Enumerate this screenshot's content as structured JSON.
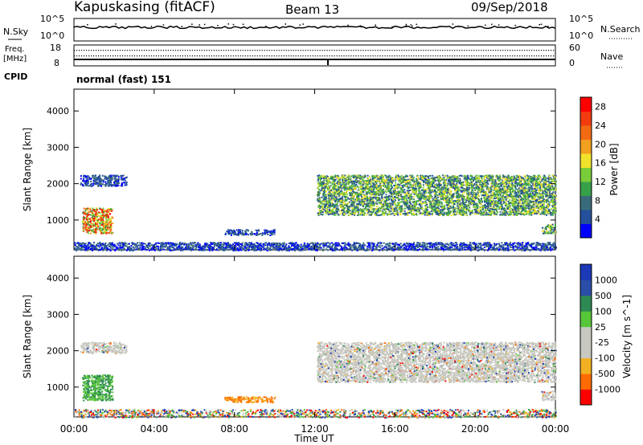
{
  "header": {
    "station": "Kapuskasing (fitACF)",
    "beam": "Beam 13",
    "date": "09/Sep/2018"
  },
  "noise_panel": {
    "left_label": "N.Sky",
    "right_label": "N.Search",
    "left_ticks": [
      "10^5",
      "10^0"
    ],
    "right_ticks": [
      "10^5",
      "10^0"
    ]
  },
  "freq_panel": {
    "left_label_line1": "Freq.",
    "left_label_line2": "[MHz]",
    "right_label": "Nave",
    "left_ticks": [
      "18",
      "8"
    ],
    "right_ticks": [
      "60",
      "0"
    ],
    "cpid_label": "CPID",
    "cpid_text": "normal (fast) 151"
  },
  "colors": {
    "power_scale": [
      "#0000ff",
      "#24509c",
      "#3a6b7a",
      "#37a14a",
      "#7acd3a",
      "#f0e22b",
      "#f2a020",
      "#f26a14",
      "#f23c10",
      "#ff0000"
    ],
    "velocity_scale": [
      "#ff0000",
      "#ff6b00",
      "#f2b122",
      "#c8c8c0",
      "#c8c8c0",
      "#57c639",
      "#2e8a53",
      "#2a4ea8",
      "#1c39b7"
    ],
    "ground_scatter": "#c8c8c0"
  },
  "chart_data": [
    {
      "type": "heatmap",
      "title": "",
      "xlabel": "",
      "ylabel": "Slant Range [km]",
      "x_ticks": [
        "00:00",
        "04:00",
        "08:00",
        "12:00",
        "16:00",
        "20:00",
        "00:00"
      ],
      "y_ticks": [
        "1000",
        "2000",
        "3000",
        "4000"
      ],
      "xlim_hours": [
        0,
        24
      ],
      "ylim_km": [
        180,
        4600
      ],
      "colorbar": {
        "label": "Power [dB]",
        "ticks": [
          "4",
          "8",
          "12",
          "16",
          "20",
          "24",
          "28"
        ],
        "range": [
          0,
          30
        ]
      },
      "regions": [
        {
          "t0": 0.3,
          "t1": 2.6,
          "r0": 1950,
          "r1": 2250,
          "level": "low"
        },
        {
          "t0": 0.4,
          "t1": 1.9,
          "r0": 650,
          "r1": 1350,
          "level": "high"
        },
        {
          "t0": 12.1,
          "t1": 24.0,
          "r0": 1150,
          "r1": 2250,
          "level": "mid"
        },
        {
          "t0": 7.5,
          "t1": 10.0,
          "r0": 600,
          "r1": 750,
          "level": "low"
        },
        {
          "t0": 23.3,
          "t1": 24.0,
          "r0": 650,
          "r1": 900,
          "level": "mid"
        },
        {
          "t0": 0.0,
          "t1": 24.0,
          "r0": 180,
          "r1": 400,
          "level": "low"
        }
      ]
    },
    {
      "type": "heatmap",
      "title": "",
      "xlabel": "Time UT",
      "ylabel": "Slant Range [km]",
      "x_ticks": [
        "00:00",
        "04:00",
        "08:00",
        "12:00",
        "16:00",
        "20:00",
        "00:00"
      ],
      "y_ticks": [
        "1000",
        "2000",
        "3000",
        "4000"
      ],
      "xlim_hours": [
        0,
        24
      ],
      "ylim_km": [
        180,
        4600
      ],
      "colorbar": {
        "label": "Velocity [m s^-1]",
        "ticks": [
          "1000",
          "500",
          "100",
          "25",
          "-25",
          "-100",
          "-500",
          "-1000"
        ],
        "range": [
          -1000,
          1000
        ]
      },
      "regions": [
        {
          "t0": 0.3,
          "t1": 2.6,
          "r0": 1950,
          "r1": 2250,
          "level": "gs"
        },
        {
          "t0": 0.4,
          "t1": 1.9,
          "r0": 650,
          "r1": 1350,
          "level": "pos"
        },
        {
          "t0": 12.1,
          "t1": 24.0,
          "r0": 1150,
          "r1": 2250,
          "level": "gs"
        },
        {
          "t0": 7.5,
          "t1": 10.0,
          "r0": 600,
          "r1": 750,
          "level": "neg"
        },
        {
          "t0": 23.3,
          "t1": 24.0,
          "r0": 650,
          "r1": 900,
          "level": "gs"
        },
        {
          "t0": 0.0,
          "t1": 24.0,
          "r0": 180,
          "r1": 400,
          "level": "mix"
        }
      ]
    }
  ]
}
